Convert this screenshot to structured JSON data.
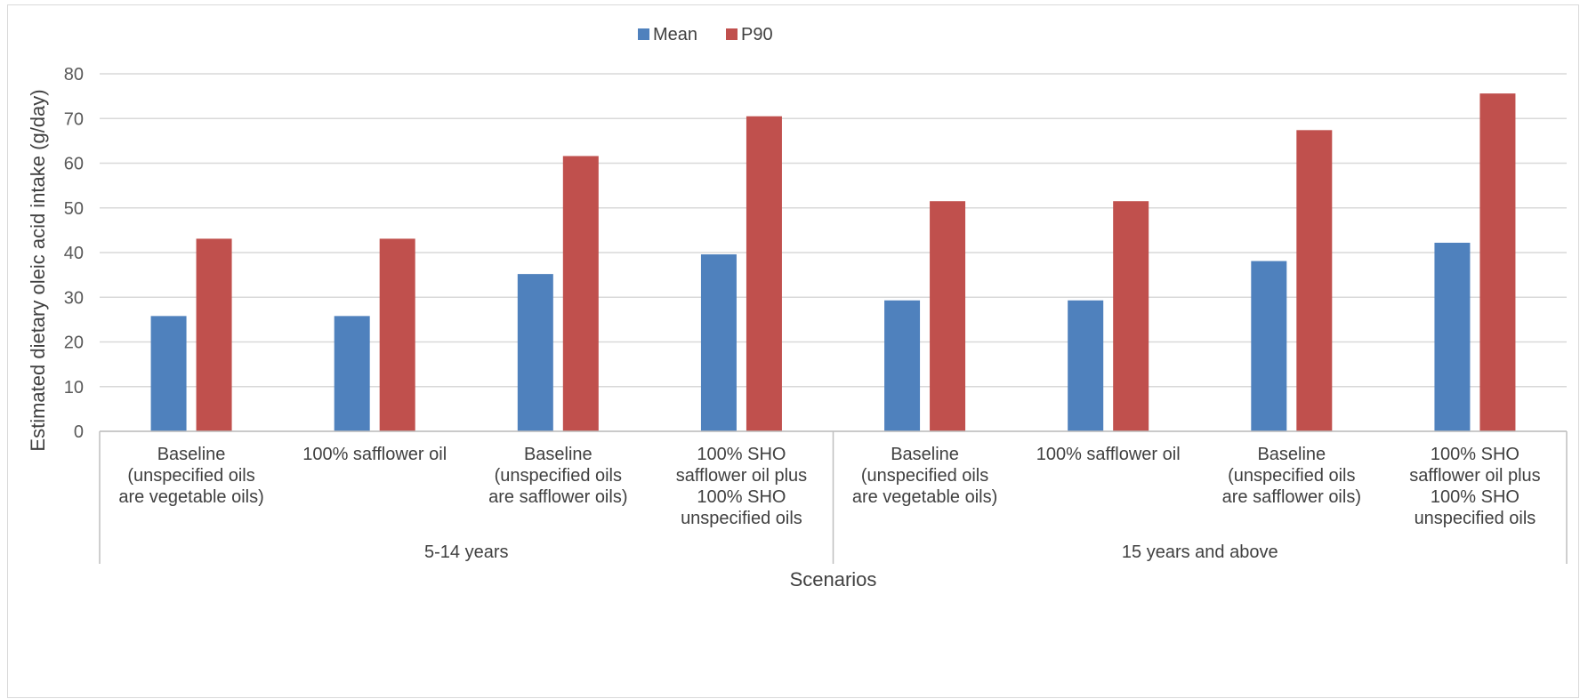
{
  "chart_data": {
    "type": "bar",
    "title": "",
    "xlabel": "Scenarios",
    "ylabel": "Estimated dietary oleic acid intake (g/day)",
    "ylim": [
      0,
      80
    ],
    "yticks": [
      0,
      10,
      20,
      30,
      40,
      50,
      60,
      70,
      80
    ],
    "grid": true,
    "legend_position": "top",
    "groups": [
      {
        "label": "5-14 years",
        "categories": [
          0,
          1,
          2,
          3
        ]
      },
      {
        "label": "15 years and above",
        "categories": [
          4,
          5,
          6,
          7
        ]
      }
    ],
    "categories": [
      [
        "Baseline",
        "(unspecified oils",
        "are vegetable oils)"
      ],
      [
        "100% safflower oil"
      ],
      [
        "Baseline",
        "(unspecified oils",
        "are safflower oils)"
      ],
      [
        "100% SHO",
        "safflower oil plus",
        "100% SHO",
        "unspecified oils"
      ],
      [
        "Baseline",
        "(unspecified oils",
        "are vegetable oils)"
      ],
      [
        "100% safflower oil"
      ],
      [
        "Baseline",
        "(unspecified oils",
        "are safflower oils)"
      ],
      [
        "100% SHO",
        "safflower oil plus",
        "100% SHO",
        "unspecified oils"
      ]
    ],
    "series": [
      {
        "name": "Mean",
        "color": "#4f81bd",
        "values": [
          25.8,
          25.8,
          35.2,
          39.6,
          29.3,
          29.3,
          38.1,
          42.2
        ]
      },
      {
        "name": "P90",
        "color": "#c0504d",
        "values": [
          43.1,
          43.1,
          61.6,
          70.5,
          51.5,
          51.5,
          67.4,
          75.6
        ]
      }
    ]
  }
}
